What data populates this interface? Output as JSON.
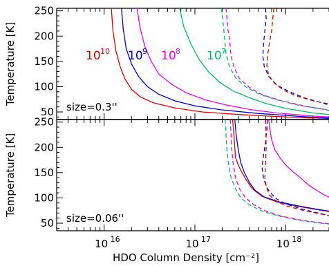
{
  "chart_data": [
    {
      "type": "line",
      "panel": "top",
      "annotation": "size=0.3''",
      "ylabel": "Temperature [K]",
      "xlabel": "",
      "xscale": "log",
      "xlim": [
        3000000000000000.0,
        3e+18
      ],
      "ylim": [
        35,
        255
      ],
      "yticks": [
        50,
        100,
        150,
        200,
        250
      ],
      "series": [
        {
          "label_main": "10",
          "label_sup": "10",
          "color": "#dd0000",
          "style": "solid",
          "x": [
            1.2e+16,
            1.25e+16,
            1.35e+16,
            1.5e+16,
            1.7e+16,
            2e+16,
            2.5e+16,
            3.5e+16,
            6e+16,
            1.2e+17,
            3e+17,
            1e+18,
            3e+18
          ],
          "y": [
            255,
            210,
            170,
            140,
            115,
            95,
            80,
            68,
            58,
            50,
            45,
            40,
            37
          ]
        },
        {
          "label_main": "10",
          "label_sup": "9",
          "color": "#0000cc",
          "style": "solid",
          "x": [
            1.55e+16,
            1.62e+16,
            1.75e+16,
            2e+16,
            2.4e+16,
            3e+16,
            4e+16,
            6e+16,
            1e+17,
            2e+17,
            5e+17,
            1.5e+18,
            3e+18
          ],
          "y": [
            255,
            215,
            175,
            145,
            120,
            100,
            85,
            72,
            62,
            54,
            47,
            41,
            38
          ]
        },
        {
          "label_main": "10",
          "label_sup": "8",
          "color": "#ee00ee",
          "style": "solid",
          "x": [
            2.3e+16,
            2.5e+16,
            2.8e+16,
            3.3e+16,
            4e+16,
            5.5e+16,
            8e+16,
            1.3e+17,
            2.2e+17,
            4e+17,
            8e+17,
            2e+18,
            3e+18
          ],
          "y": [
            255,
            215,
            180,
            150,
            125,
            105,
            88,
            74,
            64,
            55,
            48,
            42,
            40
          ]
        },
        {
          "label_main": "10",
          "label_sup": "7",
          "color": "#00bb66",
          "style": "solid",
          "x": [
            6.8e+16,
            7.5e+16,
            9e+16,
            1.1e+17,
            1.4e+17,
            1.9e+17,
            2.6e+17,
            4e+17,
            6e+17,
            1e+18,
            2e+18,
            3e+18
          ],
          "y": [
            255,
            220,
            185,
            155,
            130,
            108,
            92,
            78,
            67,
            57,
            48,
            45
          ]
        },
        {
          "color": "#00bb66",
          "style": "dashed",
          "x": [
            1.95e+17,
            2e+17,
            2.05e+17,
            2.1e+17,
            2.2e+17,
            2.4e+17,
            2.8e+17,
            3.6e+17,
            5e+17,
            8e+17,
            1.4e+18,
            3e+18
          ],
          "y": [
            255,
            240,
            225,
            205,
            165,
            140,
            118,
            100,
            86,
            74,
            63,
            54
          ]
        },
        {
          "color": "#ee00ee",
          "style": "dashed",
          "x": [
            2.2e+17,
            2.25e+17,
            2.3e+17,
            2.4e+17,
            2.5e+17,
            2.7e+17,
            3.1e+17,
            4e+17,
            5.5e+17,
            9e+17,
            1.6e+18,
            3e+18
          ],
          "y": [
            255,
            235,
            215,
            195,
            160,
            138,
            116,
            98,
            84,
            72,
            62,
            53
          ]
        },
        {
          "color": "#0000cc",
          "style": "dashed",
          "x": [
            6e+17,
            6.1e+17,
            5.9e+17,
            5.7e+17,
            5.6e+17,
            5.8e+17,
            6.5e+17,
            8e+17,
            1.1e+18,
            1.6e+18,
            2.3e+18,
            3e+18
          ],
          "y": [
            255,
            235,
            210,
            185,
            160,
            140,
            120,
            103,
            90,
            78,
            70,
            64
          ]
        },
        {
          "color": "#dd0000",
          "style": "dashed",
          "x": [
            7.4e+17,
            7.2e+17,
            7e+17,
            6.6e+17,
            6.3e+17,
            6.2e+17,
            6.5e+17,
            7.6e+17,
            9.5e+17,
            1.3e+18,
            2e+18,
            3e+18
          ],
          "y": [
            255,
            235,
            210,
            185,
            160,
            140,
            122,
            106,
            93,
            82,
            72,
            66
          ]
        }
      ]
    },
    {
      "type": "line",
      "panel": "bottom",
      "annotation": "size=0.06''",
      "ylabel": "Temperature [K]",
      "xlabel": "HDO Column Density [cm⁻²]",
      "xscale": "log",
      "xlim": [
        3000000000000000.0,
        3e+18
      ],
      "ylim": [
        35,
        255
      ],
      "yticks": [
        50,
        100,
        150,
        200,
        250
      ],
      "xticks": [
        {
          "value": 1e+16,
          "base": "10",
          "exp": "16"
        },
        {
          "value": 1e+17,
          "base": "10",
          "exp": "17"
        },
        {
          "value": 1e+18,
          "base": "10",
          "exp": "18"
        }
      ],
      "series": [
        {
          "color": "#dd0000",
          "style": "solid",
          "x": [
            2.6e+17,
            2.7e+17,
            2.8e+17,
            3e+17,
            3.3e+17,
            3.7e+17,
            4.3e+17,
            5.5e+17,
            8e+17,
            1.3e+18,
            2.2e+18,
            3e+18
          ],
          "y": [
            255,
            220,
            180,
            165,
            150,
            135,
            118,
            103,
            92,
            84,
            77,
            73
          ]
        },
        {
          "color": "#0000cc",
          "style": "solid",
          "x": [
            2.75e+17,
            2.85e+17,
            3e+17,
            3.2e+17,
            3.5e+17,
            4e+17,
            4.6e+17,
            5.8e+17,
            8.5e+17,
            1.4e+18,
            2.3e+18,
            3e+18
          ],
          "y": [
            255,
            225,
            195,
            170,
            150,
            130,
            115,
            102,
            92,
            84,
            77,
            74
          ]
        },
        {
          "color": "#ee00ee",
          "style": "solid",
          "x": [
            6.5e+17,
            6.7e+17,
            7e+17,
            7.6e+17,
            8.6e+17,
            1e+18,
            1.2e+18,
            1.45e+18,
            1.8e+18,
            2.2e+18,
            2.7e+18,
            3e+18
          ],
          "y": [
            255,
            235,
            215,
            195,
            180,
            165,
            152,
            140,
            125,
            115,
            105,
            102
          ]
        },
        {
          "color": "#00bb66",
          "style": "dashed",
          "x": [
            2.15e+17,
            2.2e+17,
            2.25e+17,
            2.35e+17,
            2.5e+17,
            2.8e+17,
            3.2e+17,
            4e+17,
            5.5e+17,
            8.5e+17,
            1.5e+18,
            3e+18
          ],
          "y": [
            255,
            225,
            195,
            165,
            140,
            118,
            100,
            86,
            74,
            64,
            55,
            48
          ]
        },
        {
          "color": "#ee00ee",
          "style": "dashed",
          "x": [
            2.45e+17,
            2.5e+17,
            2.55e+17,
            2.65e+17,
            2.8e+17,
            3.1e+17,
            3.6e+17,
            4.5e+17,
            6e+17,
            9e+17,
            1.6e+18,
            3e+18
          ],
          "y": [
            255,
            225,
            195,
            165,
            140,
            118,
            100,
            86,
            74,
            64,
            55,
            49
          ]
        },
        {
          "color": "#0000cc",
          "style": "dashed",
          "x": [
            6.3e+17,
            6.2e+17,
            6e+17,
            5.7e+17,
            5.5e+17,
            5.7e+17,
            6.3e+17,
            7.6e+17,
            1e+18,
            1.5e+18,
            2.3e+18,
            3e+18
          ],
          "y": [
            255,
            235,
            210,
            185,
            160,
            138,
            118,
            100,
            88,
            78,
            70,
            65
          ]
        },
        {
          "color": "#dd0000",
          "style": "dashed",
          "x": [
            6e+17,
            6.05e+17,
            6.1e+17,
            6e+17,
            5.9e+17,
            6.1e+17,
            6.6e+17,
            7.8e+17,
            1.02e+18,
            1.5e+18,
            2.3e+18,
            3e+18
          ],
          "y": [
            255,
            230,
            200,
            170,
            140,
            122,
            106,
            94,
            84,
            76,
            69,
            65
          ]
        }
      ]
    }
  ]
}
